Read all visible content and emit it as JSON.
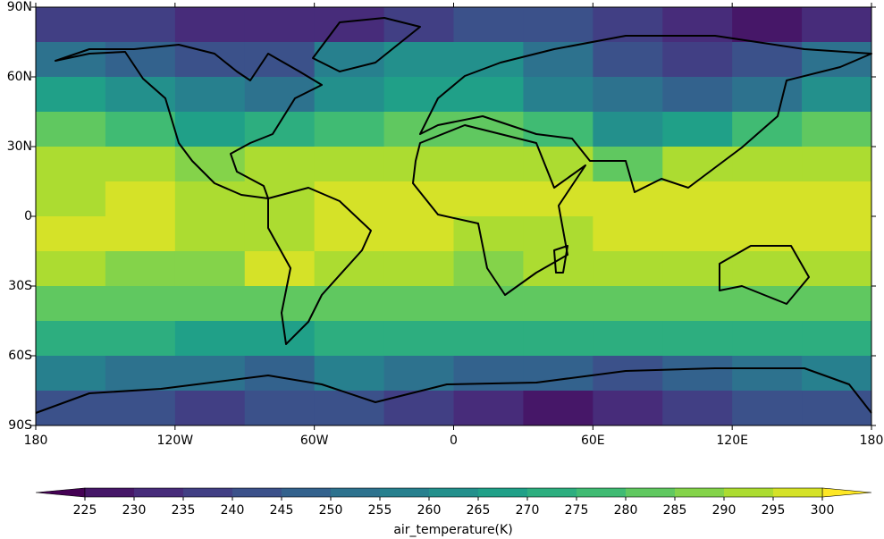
{
  "chart_data": {
    "type": "heatmap",
    "xlim": [
      -180,
      180
    ],
    "ylim": [
      -90,
      90
    ],
    "xticks": [
      {
        "value": -180,
        "label": "180"
      },
      {
        "value": -120,
        "label": "120W"
      },
      {
        "value": -60,
        "label": "60W"
      },
      0,
      {
        "value": 60,
        "label": "60E"
      },
      {
        "value": 120,
        "label": "120E"
      },
      {
        "value": 180,
        "label": "180"
      }
    ],
    "yticks": [
      {
        "value": 90,
        "label": "90N"
      },
      {
        "value": 60,
        "label": "60N"
      },
      {
        "value": 30,
        "label": "30N"
      },
      0,
      {
        "value": -30,
        "label": "30S"
      },
      {
        "value": -60,
        "label": "60S"
      },
      {
        "value": -90,
        "label": "90S"
      }
    ],
    "values": [
      [
        238,
        236,
        232,
        230,
        232,
        238,
        240,
        240,
        235,
        230,
        228,
        232
      ],
      [
        252,
        248,
        242,
        242,
        255,
        262,
        260,
        250,
        242,
        238,
        240,
        250
      ],
      [
        265,
        262,
        255,
        252,
        262,
        268,
        265,
        258,
        250,
        248,
        252,
        262
      ],
      [
        280,
        278,
        268,
        270,
        278,
        282,
        280,
        275,
        262,
        265,
        275,
        280
      ],
      [
        290,
        290,
        288,
        290,
        290,
        292,
        292,
        290,
        282,
        292,
        292,
        290
      ],
      [
        294,
        295,
        293,
        292,
        296,
        296,
        297,
        296,
        298,
        298,
        298,
        295
      ],
      [
        297,
        296,
        294,
        292,
        295,
        296,
        294,
        292,
        298,
        298,
        298,
        297
      ],
      [
        290,
        288,
        288,
        295,
        290,
        290,
        288,
        290,
        290,
        292,
        292,
        290
      ],
      [
        283,
        282,
        281,
        282,
        283,
        282,
        282,
        281,
        282,
        282,
        283,
        283
      ],
      [
        270,
        270,
        268,
        265,
        270,
        272,
        270,
        270,
        270,
        270,
        270,
        270
      ],
      [
        255,
        252,
        250,
        248,
        255,
        250,
        245,
        245,
        242,
        248,
        250,
        255
      ],
      [
        242,
        240,
        238,
        240,
        242,
        235,
        230,
        228,
        232,
        238,
        240,
        242
      ]
    ],
    "colorbar": {
      "label": "air_temperature(K)",
      "lim": [
        225,
        300
      ],
      "ticks": [
        225,
        230,
        235,
        240,
        245,
        250,
        255,
        260,
        265,
        270,
        275,
        280,
        285,
        290,
        295,
        300
      ]
    }
  }
}
